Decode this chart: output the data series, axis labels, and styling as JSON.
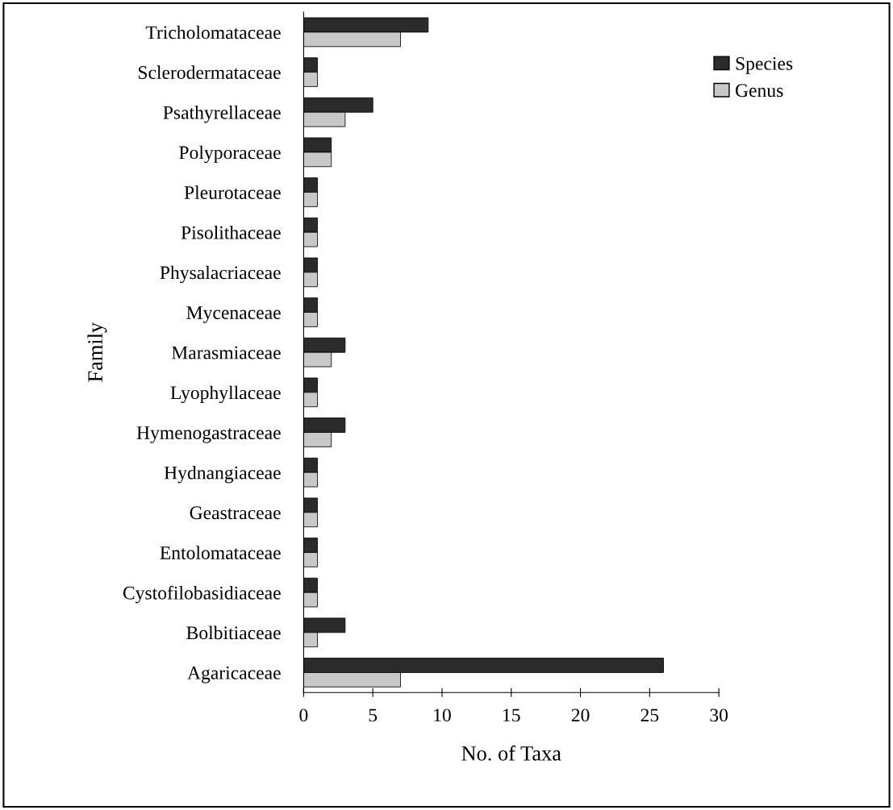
{
  "chart_data": {
    "type": "bar",
    "orientation": "horizontal",
    "xlabel": "No. of Taxa",
    "ylabel": "Family",
    "categories": [
      "Tricholomataceae",
      "Sclerodermataceae",
      "Psathyrellaceae",
      "Polyporaceae",
      "Pleurotaceae",
      "Pisolithaceae",
      "Physalacriaceae",
      "Mycenaceae",
      "Marasmiaceae",
      "Lyophyllaceae",
      "Hymenogastraceae",
      "Hydnangiaceae",
      "Geastraceae",
      "Entolomataceae",
      "Cystofilobasidiaceae",
      "Bolbitiaceae",
      "Agaricaceae"
    ],
    "series": [
      {
        "name": "Species",
        "color": "#2b2b2b",
        "values": [
          9,
          1,
          5,
          2,
          1,
          1,
          1,
          1,
          3,
          1,
          3,
          1,
          1,
          1,
          1,
          3,
          26
        ]
      },
      {
        "name": "Genus",
        "color": "#c8c8c8",
        "values": [
          7,
          1,
          3,
          2,
          1,
          1,
          1,
          1,
          2,
          1,
          2,
          1,
          1,
          1,
          1,
          1,
          7
        ]
      }
    ],
    "xlim": [
      0,
      30
    ],
    "xticks": [
      0,
      5,
      10,
      15,
      20,
      25,
      30
    ],
    "legend": "top right",
    "grid": false
  }
}
